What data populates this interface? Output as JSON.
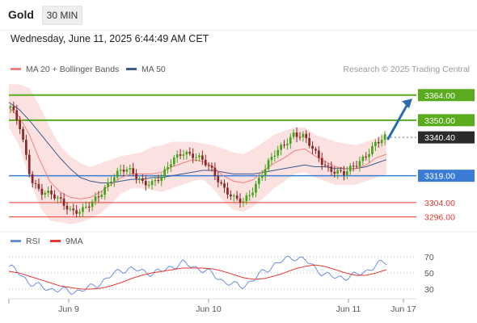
{
  "header": {
    "asset": "Gold",
    "timeframe": "30 MIN",
    "datetime": "Wednesday, June 11, 2025 6:44:49 AM CET"
  },
  "legend": {
    "ma20": "MA 20 + Bollinger Bands",
    "ma50": "MA 50",
    "credit": "Research © 2025 Trading Central",
    "rsi": "RSI",
    "rsi_ma": "9MA"
  },
  "colors": {
    "green": "#5aab1e",
    "blue_line": "#3a7bd5",
    "red_line": "#e8392f",
    "candle_up": "#43a61a",
    "candle_down": "#8b2727",
    "ma20": "#f08080",
    "ma50": "#3d5a8c",
    "band": "#fbd7d7",
    "current_price_bg": "#2b2b2b",
    "rsi_line": "#6b8fe0",
    "rsi_ma_line": "#e8392f",
    "arrow": "#2b6cb0"
  },
  "chart_data": [
    {
      "type": "candlestick",
      "title": "Gold 30 MIN",
      "x_ticks": [
        "Jun 9",
        "Jun 10",
        "Jun 11",
        "Jun 17"
      ],
      "ylim": [
        3290,
        3372
      ],
      "price_levels": [
        {
          "value": 3364.0,
          "label": "3364.00",
          "kind": "resistance"
        },
        {
          "value": 3350.0,
          "label": "3350.00",
          "kind": "resistance"
        },
        {
          "value": 3340.4,
          "label": "3340.40",
          "kind": "current"
        },
        {
          "value": 3319.0,
          "label": "3319.00",
          "kind": "pivot"
        },
        {
          "value": 3304.0,
          "label": "3304.00",
          "kind": "support"
        },
        {
          "value": 3296.0,
          "label": "3296.00",
          "kind": "support"
        }
      ],
      "close_path": [
        3357,
        3345,
        3318,
        3310,
        3308,
        3305,
        3300,
        3299,
        3303,
        3310,
        3318,
        3322,
        3321,
        3316,
        3315,
        3318,
        3328,
        3333,
        3330,
        3327,
        3322,
        3313,
        3306,
        3304,
        3312,
        3322,
        3330,
        3336,
        3343,
        3341,
        3332,
        3325,
        3322,
        3320,
        3324,
        3330,
        3337,
        3340
      ],
      "ma20": [
        3357,
        3352,
        3342,
        3328,
        3316,
        3310,
        3307,
        3306,
        3307,
        3310,
        3314,
        3318,
        3320,
        3320,
        3320,
        3321,
        3324,
        3326,
        3328,
        3327,
        3324,
        3319,
        3316,
        3315,
        3317,
        3322,
        3326,
        3329,
        3333,
        3334,
        3330,
        3327,
        3324,
        3323,
        3323,
        3325,
        3329,
        3331
      ],
      "ma50": [
        3360,
        3356,
        3350,
        3343,
        3336,
        3329,
        3323,
        3318,
        3316,
        3315,
        3315,
        3316,
        3317,
        3317,
        3318,
        3318,
        3319,
        3320,
        3321,
        3322,
        3322,
        3321,
        3320,
        3320,
        3320,
        3321,
        3322,
        3323,
        3324,
        3325,
        3324,
        3324,
        3323,
        3323,
        3323,
        3324,
        3326,
        3328
      ],
      "bb_upper": [
        3370,
        3370,
        3368,
        3358,
        3346,
        3336,
        3330,
        3326,
        3324,
        3326,
        3328,
        3330,
        3331,
        3332,
        3335,
        3336,
        3338,
        3338,
        3338,
        3337,
        3336,
        3334,
        3332,
        3331,
        3334,
        3338,
        3342,
        3344,
        3346,
        3346,
        3342,
        3340,
        3338,
        3337,
        3336,
        3338,
        3340,
        3342
      ],
      "bb_lower": [
        3346,
        3336,
        3318,
        3302,
        3294,
        3293,
        3292,
        3293,
        3295,
        3298,
        3303,
        3309,
        3312,
        3312,
        3311,
        3310,
        3312,
        3314,
        3316,
        3317,
        3312,
        3305,
        3300,
        3299,
        3302,
        3307,
        3312,
        3316,
        3320,
        3321,
        3318,
        3316,
        3314,
        3314,
        3314,
        3316,
        3318,
        3320
      ]
    },
    {
      "type": "line",
      "title": "RSI",
      "ylim": [
        20,
        80
      ],
      "y_ticks": [
        30,
        50,
        70
      ],
      "series": [
        {
          "name": "RSI",
          "values": [
            58,
            50,
            38,
            33,
            30,
            29,
            27,
            28,
            32,
            38,
            46,
            54,
            55,
            52,
            50,
            52,
            58,
            62,
            58,
            54,
            48,
            40,
            35,
            34,
            42,
            52,
            60,
            66,
            70,
            66,
            56,
            48,
            44,
            45,
            47,
            52,
            60,
            63
          ]
        },
        {
          "name": "9MA",
          "values": [
            52,
            50,
            46,
            42,
            38,
            34,
            32,
            30,
            30,
            31,
            34,
            38,
            43,
            47,
            50,
            52,
            54,
            56,
            56,
            56,
            55,
            52,
            48,
            44,
            42,
            43,
            46,
            50,
            55,
            58,
            60,
            58,
            54,
            50,
            47,
            47,
            50,
            54
          ]
        }
      ]
    }
  ]
}
